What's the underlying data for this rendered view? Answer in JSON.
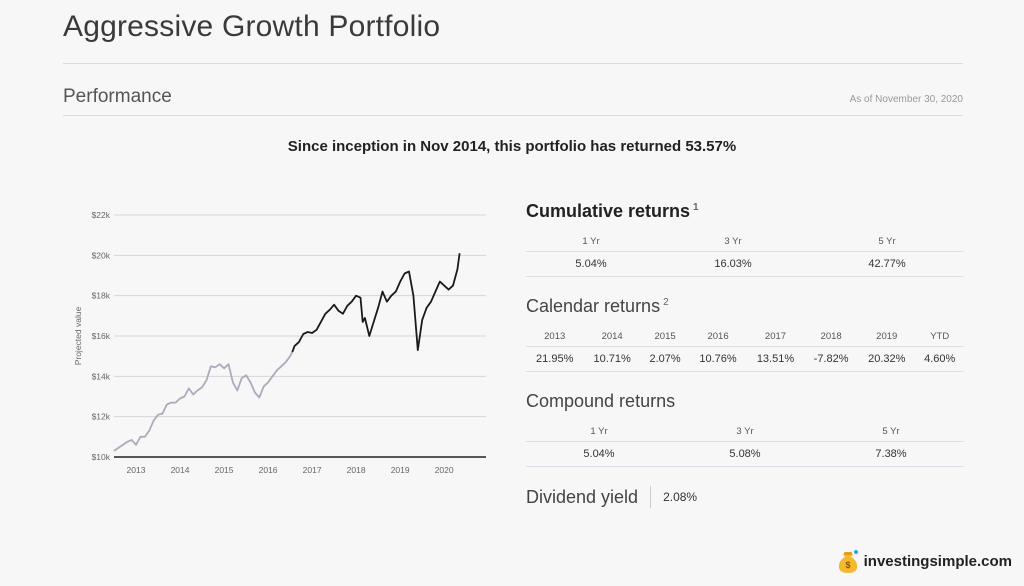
{
  "page": {
    "title": "Aggressive Growth Portfolio",
    "section": "Performance",
    "as_of": "As of November 30, 2020",
    "headline": "Since inception in Nov 2014, this portfolio has returned 53.57%"
  },
  "chart_data": {
    "type": "line",
    "ylabel": "Projected value",
    "y_ticks": [
      "$10k",
      "$12k",
      "$14k",
      "$16k",
      "$18k",
      "$20k",
      "$22k"
    ],
    "x_ticks": [
      "2013",
      "2014",
      "2015",
      "2016",
      "2017",
      "2018",
      "2019",
      "2020"
    ],
    "ylim": [
      10000,
      22000
    ],
    "xlim": [
      2012.5,
      2020.95
    ],
    "grid": true,
    "series": [
      {
        "color": "#a9adbb",
        "x": [
          2012.5,
          2012.6,
          2012.7,
          2012.8,
          2012.9,
          2013.0,
          2013.1,
          2013.2,
          2013.3,
          2013.4,
          2013.5,
          2013.6,
          2013.7,
          2013.8,
          2013.9,
          2014.0,
          2014.1,
          2014.2,
          2014.3,
          2014.4,
          2014.5,
          2014.6,
          2014.7,
          2014.8,
          2014.9,
          2015.0,
          2015.1,
          2015.2,
          2015.3,
          2015.4,
          2015.5,
          2015.6,
          2015.7,
          2015.8,
          2015.9,
          2016.0,
          2016.1,
          2016.2,
          2016.3,
          2016.4,
          2016.5,
          2016.55
        ],
        "y": [
          10300,
          10450,
          10600,
          10750,
          10850,
          10600,
          11000,
          11000,
          11300,
          11800,
          12100,
          12150,
          12600,
          12700,
          12700,
          12900,
          13000,
          13400,
          13100,
          13300,
          13450,
          13800,
          14500,
          14450,
          14600,
          14400,
          14600,
          13700,
          13300,
          13900,
          14050,
          13700,
          13200,
          12950,
          13500,
          13700,
          14000,
          14300,
          14500,
          14700,
          15000,
          15200
        ]
      },
      {
        "color": "#1a1a1a",
        "x": [
          2016.55,
          2016.6,
          2016.7,
          2016.8,
          2016.9,
          2017.0,
          2017.1,
          2017.2,
          2017.3,
          2017.4,
          2017.5,
          2017.6,
          2017.7,
          2017.8,
          2017.9,
          2018.0,
          2018.1,
          2018.15,
          2018.2,
          2018.3,
          2018.4,
          2018.5,
          2018.6,
          2018.7,
          2018.8,
          2018.9,
          2019.0,
          2019.1,
          2019.2,
          2019.3,
          2019.4,
          2019.5,
          2019.6,
          2019.7,
          2019.8,
          2019.9,
          2020.0,
          2020.1,
          2020.2,
          2020.3,
          2020.35
        ],
        "y": [
          15200,
          15500,
          15700,
          16100,
          16200,
          16150,
          16300,
          16700,
          17100,
          17300,
          17550,
          17250,
          17100,
          17500,
          17700,
          18000,
          17900,
          16700,
          16900,
          16000,
          16700,
          17400,
          18200,
          17700,
          18000,
          18200,
          18700,
          19100,
          19200,
          18000,
          15300,
          16800,
          17400,
          17700,
          18200,
          18700,
          18500,
          18300,
          18500,
          19300,
          20100
        ]
      }
    ]
  },
  "cumulative": {
    "title": "Cumulative returns",
    "note": "1",
    "headers": [
      "1 Yr",
      "3 Yr",
      "5 Yr"
    ],
    "values": [
      "5.04%",
      "16.03%",
      "42.77%"
    ]
  },
  "calendar": {
    "title": "Calendar returns",
    "note": "2",
    "headers": [
      "2013",
      "2014",
      "2015",
      "2016",
      "2017",
      "2018",
      "2019",
      "YTD"
    ],
    "values": [
      "21.95%",
      "10.71%",
      "2.07%",
      "10.76%",
      "13.51%",
      "-7.82%",
      "20.32%",
      "4.60%"
    ]
  },
  "compound": {
    "title": "Compound returns",
    "headers": [
      "1 Yr",
      "3 Yr",
      "5 Yr"
    ],
    "values": [
      "5.04%",
      "5.08%",
      "7.38%"
    ]
  },
  "dividend": {
    "title": "Dividend yield",
    "value": "2.08%"
  },
  "brand": {
    "name": "investingsimple.com",
    "icon": "money-bag-icon"
  }
}
